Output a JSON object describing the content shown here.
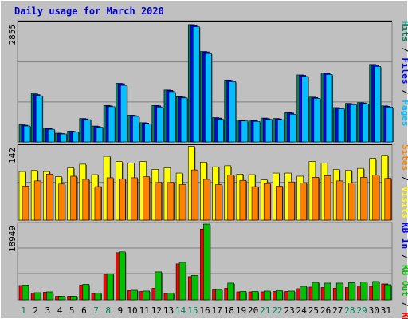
{
  "chart_title": "Daily usage for March 2020",
  "colors": {
    "background": "#c0c0c0",
    "border": "#808080",
    "title": "#0000cc",
    "hits": "#00805c",
    "files": "#0000ff",
    "pages": "#00c0ff",
    "visits": "#ffff00",
    "sites": "#ff8000",
    "kb_in": "#00c000",
    "kb_out": "#ff0000",
    "weekend_day": "#00805c",
    "weekday_day": "#000000"
  },
  "chart_data": [
    {
      "type": "bar",
      "panel": "hits-files-pages",
      "ymax_label": "2855",
      "ylim": [
        0,
        2855
      ],
      "legend": [
        "Pages",
        "Files",
        "Hits"
      ],
      "categories": [
        "1",
        "2",
        "3",
        "4",
        "5",
        "6",
        "7",
        "8",
        "9",
        "10",
        "11",
        "12",
        "13",
        "14",
        "15",
        "16",
        "17",
        "18",
        "19",
        "20",
        "21",
        "22",
        "23",
        "24",
        "25",
        "26",
        "27",
        "28",
        "29",
        "30",
        "31"
      ],
      "series": [
        {
          "name": "Hits",
          "values": [
            410,
            1160,
            330,
            210,
            260,
            560,
            380,
            870,
            1400,
            640,
            460,
            870,
            1240,
            1080,
            2800,
            2160,
            580,
            1480,
            520,
            520,
            570,
            560,
            700,
            1600,
            1070,
            1650,
            820,
            920,
            940,
            1850,
            860
          ]
        },
        {
          "name": "Files",
          "values": [
            400,
            1130,
            320,
            200,
            250,
            550,
            370,
            860,
            1390,
            630,
            450,
            860,
            1230,
            1070,
            2790,
            2150,
            570,
            1470,
            510,
            510,
            560,
            550,
            690,
            1590,
            1060,
            1640,
            810,
            910,
            930,
            1840,
            850
          ]
        },
        {
          "name": "Pages",
          "values": [
            380,
            1100,
            300,
            190,
            240,
            530,
            350,
            840,
            1350,
            610,
            430,
            830,
            1200,
            1050,
            2750,
            2110,
            540,
            1440,
            500,
            490,
            540,
            530,
            660,
            1560,
            1040,
            1610,
            790,
            890,
            910,
            1800,
            830
          ]
        }
      ]
    },
    {
      "type": "bar",
      "panel": "visits-sites",
      "ymax_label": "142",
      "ylim": [
        0,
        142
      ],
      "legend": [
        "Visits",
        "Sites"
      ],
      "categories": [
        "1",
        "2",
        "3",
        "4",
        "5",
        "6",
        "7",
        "8",
        "9",
        "10",
        "11",
        "12",
        "13",
        "14",
        "15",
        "16",
        "17",
        "18",
        "19",
        "20",
        "21",
        "22",
        "23",
        "24",
        "25",
        "26",
        "27",
        "28",
        "29",
        "30",
        "31"
      ],
      "series": [
        {
          "name": "Visits",
          "values": [
            93,
            95,
            93,
            83,
            100,
            107,
            87,
            122,
            112,
            109,
            112,
            97,
            100,
            90,
            141,
            111,
            102,
            104,
            88,
            87,
            77,
            90,
            90,
            84,
            112,
            109,
            97,
            95,
            99,
            118,
            124
          ]
        },
        {
          "name": "Sites",
          "values": [
            65,
            75,
            88,
            69,
            84,
            78,
            64,
            81,
            79,
            81,
            83,
            72,
            72,
            68,
            96,
            78,
            68,
            86,
            76,
            64,
            70,
            65,
            73,
            71,
            82,
            85,
            75,
            71,
            82,
            86,
            80
          ]
        }
      ]
    },
    {
      "type": "bar",
      "panel": "kbytes",
      "ymax_label": "18949",
      "ylim": [
        0,
        18949
      ],
      "legend": [
        "KB F",
        "KB Out",
        "KB In"
      ],
      "categories": [
        "1",
        "2",
        "3",
        "4",
        "5",
        "6",
        "7",
        "8",
        "9",
        "10",
        "11",
        "12",
        "13",
        "14",
        "15",
        "16",
        "17",
        "18",
        "19",
        "20",
        "21",
        "22",
        "23",
        "24",
        "25",
        "26",
        "27",
        "28",
        "29",
        "30",
        "31"
      ],
      "series": [
        {
          "name": "KB Out",
          "values": [
            3600,
            1700,
            1900,
            900,
            900,
            3700,
            1600,
            6400,
            11800,
            2300,
            2100,
            2900,
            1600,
            9000,
            5800,
            17700,
            2500,
            2900,
            2000,
            2000,
            2000,
            2100,
            2100,
            2800,
            3200,
            3100,
            2900,
            3100,
            3500,
            3400,
            4000
          ]
        },
        {
          "name": "KB In",
          "values": [
            3700,
            1800,
            2000,
            900,
            900,
            3900,
            1700,
            6500,
            12000,
            2400,
            2200,
            7000,
            1700,
            9400,
            6100,
            18949,
            2600,
            4200,
            2100,
            2100,
            2200,
            2300,
            2200,
            3400,
            4400,
            4200,
            4200,
            4300,
            4500,
            4600,
            3800
          ]
        }
      ]
    }
  ]
}
